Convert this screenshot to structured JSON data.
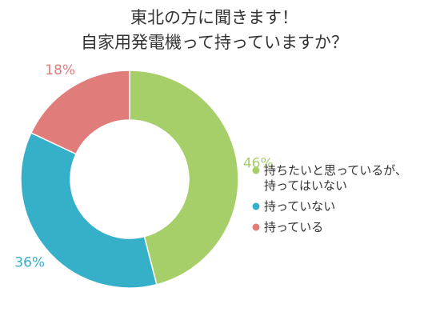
{
  "chart_data": {
    "type": "pie",
    "donut": true,
    "title_lines": [
      "東北の方に聞きます！",
      "自家用発電機って持っていますか？"
    ],
    "slices": [
      {
        "legend_lines": [
          "持ちたいと思っているが、",
          "持ってはいない"
        ],
        "value": 46,
        "label": "46%",
        "color": "#a6cf6a"
      },
      {
        "legend_lines": [
          "持っていない"
        ],
        "value": 36,
        "label": "36%",
        "color": "#36afc9"
      },
      {
        "legend_lines": [
          "持っている"
        ],
        "value": 18,
        "label": "18%",
        "color": "#e07c7a"
      }
    ],
    "legend_position": "right"
  }
}
